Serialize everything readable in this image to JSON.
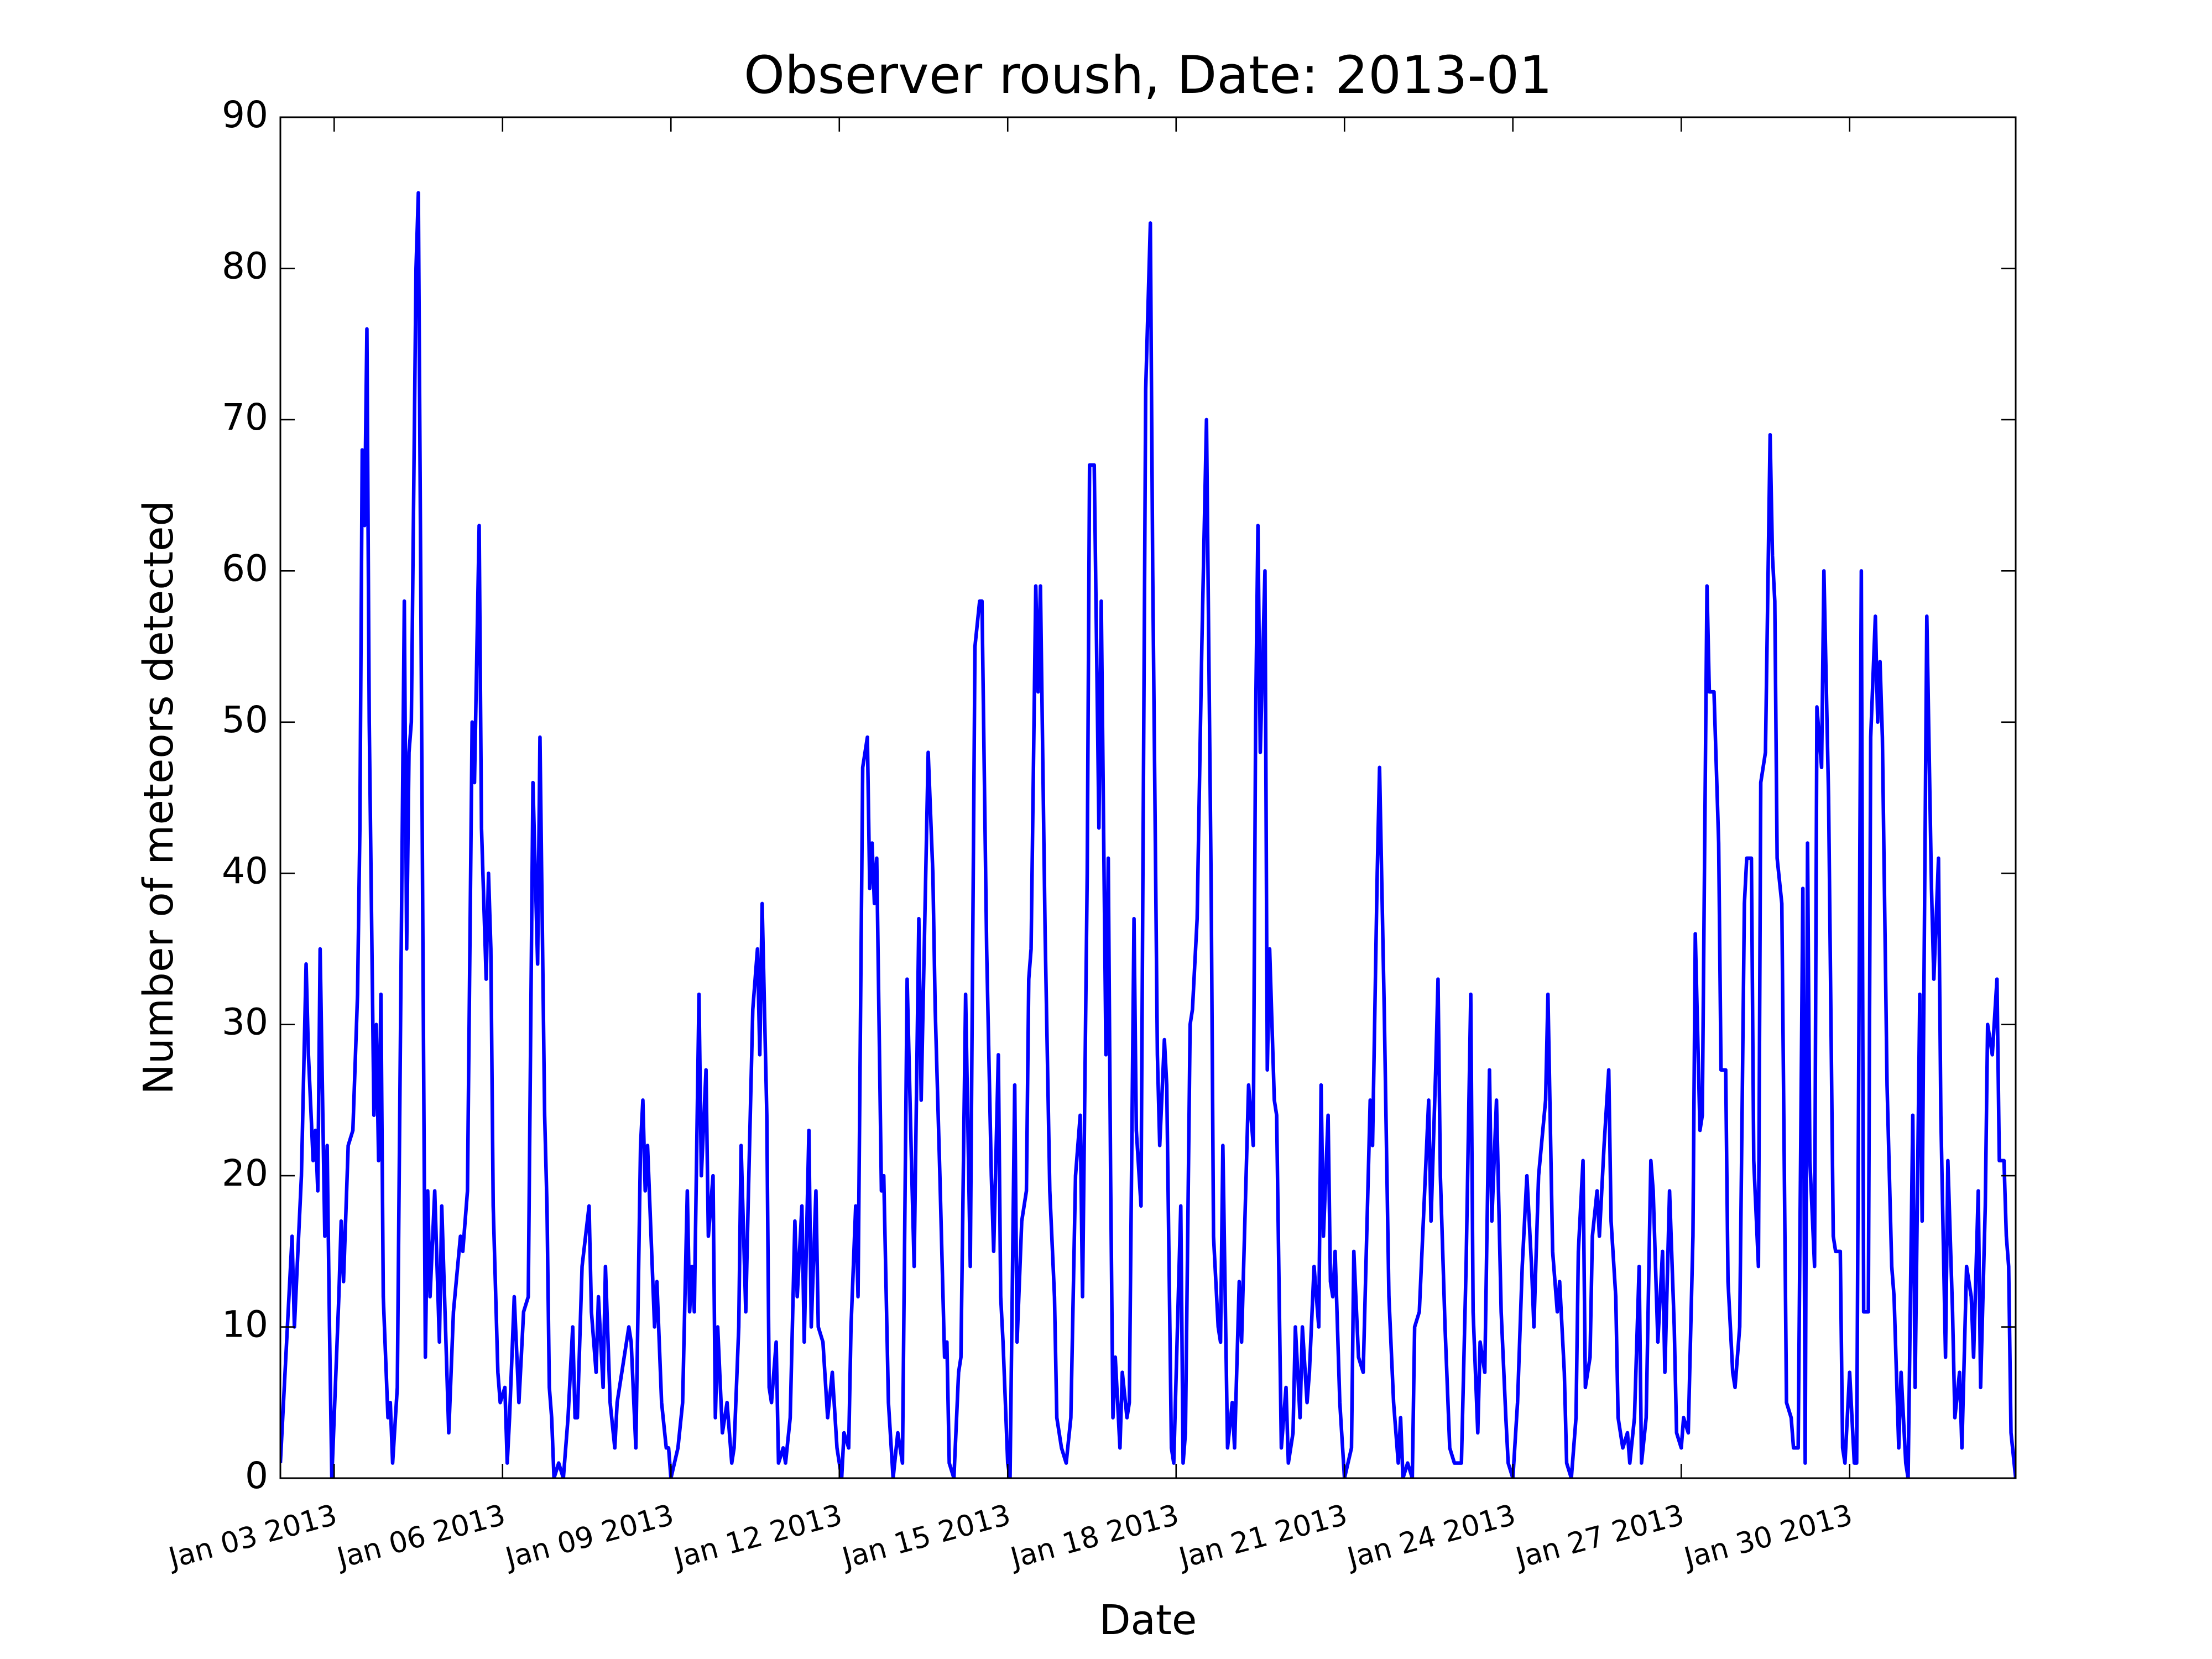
{
  "chart_data": {
    "type": "line",
    "title": "Observer roush, Date: 2013-01",
    "xlabel": "Date",
    "ylabel": "Number of meteors detected",
    "color": "#0000ff",
    "grid": false,
    "xlim": [
      "2013-01-02T01:00",
      "2013-02-01T23:00"
    ],
    "ylim": [
      0,
      90
    ],
    "yticks": [
      0,
      10,
      20,
      30,
      40,
      50,
      60,
      70,
      80,
      90
    ],
    "xticks": [
      {
        "value": "2013-01-03T00:00",
        "label": "Jan 03 2013"
      },
      {
        "value": "2013-01-06T00:00",
        "label": "Jan 06 2013"
      },
      {
        "value": "2013-01-09T00:00",
        "label": "Jan 09 2013"
      },
      {
        "value": "2013-01-12T00:00",
        "label": "Jan 12 2013"
      },
      {
        "value": "2013-01-15T00:00",
        "label": "Jan 15 2013"
      },
      {
        "value": "2013-01-18T00:00",
        "label": "Jan 18 2013"
      },
      {
        "value": "2013-01-21T00:00",
        "label": "Jan 21 2013"
      },
      {
        "value": "2013-01-24T00:00",
        "label": "Jan 24 2013"
      },
      {
        "value": "2013-01-27T00:00",
        "label": "Jan 27 2013"
      },
      {
        "value": "2013-01-30T00:00",
        "label": "Jan 30 2013"
      }
    ],
    "x": [
      "2013-01-02T01:00",
      "2013-01-02T04:00",
      "2013-01-02T06:00",
      "2013-01-02T07:00",
      "2013-01-02T10:00",
      "2013-01-02T12:00",
      "2013-01-02T13:00",
      "2013-01-02T15:00",
      "2013-01-02T16:00",
      "2013-01-02T17:00",
      "2013-01-02T18:00",
      "2013-01-02T20:00",
      "2013-01-02T21:00",
      "2013-01-02T22:00",
      "2013-01-02T23:00",
      "2013-01-03T02:00",
      "2013-01-03T03:00",
      "2013-01-03T04:00",
      "2013-01-03T06:00",
      "2013-01-03T08:00",
      "2013-01-03T10:00",
      "2013-01-03T11:00",
      "2013-01-03T12:00",
      "2013-01-03T13:00",
      "2013-01-03T14:00",
      "2013-01-03T15:00",
      "2013-01-03T17:00",
      "2013-01-03T18:00",
      "2013-01-03T19:00",
      "2013-01-03T20:00",
      "2013-01-03T21:00",
      "2013-01-03T23:00",
      "2013-01-04T00:00",
      "2013-01-04T01:00",
      "2013-01-04T03:00",
      "2013-01-04T06:00",
      "2013-01-04T07:00",
      "2013-01-04T08:00",
      "2013-01-04T09:00",
      "2013-01-04T11:00",
      "2013-01-04T12:00",
      "2013-01-04T13:00",
      "2013-01-04T15:00",
      "2013-01-04T16:00",
      "2013-01-04T17:00",
      "2013-01-04T19:00",
      "2013-01-04T21:00",
      "2013-01-04T22:00",
      "2013-01-05T01:00",
      "2013-01-05T03:00",
      "2013-01-05T06:00",
      "2013-01-05T07:00",
      "2013-01-05T09:00",
      "2013-01-05T11:00",
      "2013-01-05T12:00",
      "2013-01-05T14:00",
      "2013-01-05T15:00",
      "2013-01-05T17:00",
      "2013-01-05T18:00",
      "2013-01-05T19:00",
      "2013-01-05T20:00",
      "2013-01-05T22:00",
      "2013-01-05T23:00",
      "2013-01-06T01:00",
      "2013-01-06T02:00",
      "2013-01-06T03:00",
      "2013-01-06T05:00",
      "2013-01-06T07:00",
      "2013-01-06T09:00",
      "2013-01-06T11:00",
      "2013-01-06T13:00",
      "2013-01-06T15:00",
      "2013-01-06T16:00",
      "2013-01-06T18:00",
      "2013-01-06T19:00",
      "2013-01-06T20:00",
      "2013-01-06T21:00",
      "2013-01-06T22:00",
      "2013-01-07T00:00",
      "2013-01-07T02:00",
      "2013-01-07T04:00",
      "2013-01-07T06:00",
      "2013-01-07T07:00",
      "2013-01-07T08:00",
      "2013-01-07T10:00",
      "2013-01-07T13:00",
      "2013-01-07T14:00",
      "2013-01-07T16:00",
      "2013-01-07T17:00",
      "2013-01-07T19:00",
      "2013-01-07T20:00",
      "2013-01-07T22:00",
      "2013-01-08T00:00",
      "2013-01-08T01:00",
      "2013-01-08T04:00",
      "2013-01-08T06:00",
      "2013-01-08T07:00",
      "2013-01-08T09:00",
      "2013-01-08T11:00",
      "2013-01-08T12:00",
      "2013-01-08T13:00",
      "2013-01-08T14:00",
      "2013-01-08T15:00",
      "2013-01-08T17:00",
      "2013-01-08T18:00",
      "2013-01-08T20:00",
      "2013-01-08T22:00",
      "2013-01-08T23:00",
      "2013-01-09T00:00",
      "2013-01-09T03:00",
      "2013-01-09T05:00",
      "2013-01-09T07:00",
      "2013-01-09T08:00",
      "2013-01-09T09:00",
      "2013-01-09T10:00",
      "2013-01-09T12:00",
      "2013-01-09T13:00",
      "2013-01-09T15:00",
      "2013-01-09T16:00",
      "2013-01-09T18:00",
      "2013-01-09T19:00",
      "2013-01-09T20:00",
      "2013-01-09T22:00",
      "2013-01-10T00:00",
      "2013-01-10T02:00",
      "2013-01-10T03:00",
      "2013-01-10T05:00",
      "2013-01-10T06:00",
      "2013-01-10T08:00",
      "2013-01-10T09:00",
      "2013-01-10T11:00",
      "2013-01-10T13:00",
      "2013-01-10T14:00",
      "2013-01-10T15:00",
      "2013-01-10T17:00",
      "2013-01-10T18:00",
      "2013-01-10T19:00",
      "2013-01-10T21:00",
      "2013-01-10T22:00",
      "2013-01-11T00:00",
      "2013-01-11T01:00",
      "2013-01-11T03:00",
      "2013-01-11T05:00",
      "2013-01-11T06:00",
      "2013-01-11T08:00",
      "2013-01-11T09:00",
      "2013-01-11T11:00",
      "2013-01-11T12:00",
      "2013-01-11T14:00",
      "2013-01-11T15:00",
      "2013-01-11T17:00",
      "2013-01-11T19:00",
      "2013-01-11T21:00",
      "2013-01-11T23:00",
      "2013-01-12T01:00",
      "2013-01-12T02:00",
      "2013-01-12T04:00",
      "2013-01-12T05:00",
      "2013-01-12T07:00",
      "2013-01-12T08:00",
      "2013-01-12T10:00",
      "2013-01-12T12:00",
      "2013-01-12T13:00",
      "2013-01-12T14:00",
      "2013-01-12T15:00",
      "2013-01-12T16:00",
      "2013-01-12T18:00",
      "2013-01-12T19:00",
      "2013-01-12T21:00",
      "2013-01-12T23:00",
      "2013-01-13T01:00",
      "2013-01-13T03:00",
      "2013-01-13T05:00",
      "2013-01-13T07:00",
      "2013-01-13T08:00",
      "2013-01-13T10:00",
      "2013-01-13T11:00",
      "2013-01-13T14:00",
      "2013-01-13T16:00",
      "2013-01-13T17:00",
      "2013-01-13T19:00",
      "2013-01-13T21:00",
      "2013-01-13T22:00",
      "2013-01-13T23:00",
      "2013-01-14T01:00",
      "2013-01-14T03:00",
      "2013-01-14T04:00",
      "2013-01-14T06:00",
      "2013-01-14T08:00",
      "2013-01-14T10:00",
      "2013-01-14T12:00",
      "2013-01-14T13:00",
      "2013-01-14T15:00",
      "2013-01-14T17:00",
      "2013-01-14T18:00",
      "2013-01-14T20:00",
      "2013-01-14T21:00",
      "2013-01-14T22:00",
      "2013-01-15T00:00",
      "2013-01-15T01:00",
      "2013-01-15T03:00",
      "2013-01-15T04:00",
      "2013-01-15T06:00",
      "2013-01-15T08:00",
      "2013-01-15T09:00",
      "2013-01-15T10:00",
      "2013-01-15T12:00",
      "2013-01-15T13:00",
      "2013-01-15T14:00",
      "2013-01-15T16:00",
      "2013-01-15T18:00",
      "2013-01-15T20:00",
      "2013-01-15T21:00",
      "2013-01-15T23:00",
      "2013-01-16T01:00",
      "2013-01-16T03:00",
      "2013-01-16T05:00",
      "2013-01-16T07:00",
      "2013-01-16T08:00",
      "2013-01-16T10:00",
      "2013-01-16T11:00",
      "2013-01-16T13:00",
      "2013-01-16T14:00",
      "2013-01-16T15:00",
      "2013-01-16T16:00",
      "2013-01-16T18:00",
      "2013-01-16T19:00",
      "2013-01-16T20:00",
      "2013-01-16T21:00",
      "2013-01-16T22:00",
      "2013-01-17T00:00",
      "2013-01-17T01:00",
      "2013-01-17T03:00",
      "2013-01-17T04:00",
      "2013-01-17T06:00",
      "2013-01-17T07:00",
      "2013-01-17T09:00",
      "2013-01-17T11:00",
      "2013-01-17T13:00",
      "2013-01-17T14:00",
      "2013-01-17T16:00",
      "2013-01-17T17:00",
      "2013-01-17T19:00",
      "2013-01-17T20:00",
      "2013-01-17T22:00",
      "2013-01-17T23:00",
      "2013-01-18T02:00",
      "2013-01-18T03:00",
      "2013-01-18T04:00",
      "2013-01-18T06:00",
      "2013-01-18T07:00",
      "2013-01-18T09:00",
      "2013-01-18T11:00",
      "2013-01-18T13:00",
      "2013-01-18T15:00",
      "2013-01-18T16:00",
      "2013-01-18T18:00",
      "2013-01-18T19:00",
      "2013-01-18T20:00",
      "2013-01-18T22:00",
      "2013-01-19T00:00",
      "2013-01-19T01:00",
      "2013-01-19T03:00",
      "2013-01-19T04:00",
      "2013-01-19T07:00",
      "2013-01-19T09:00",
      "2013-01-19T10:00",
      "2013-01-19T11:00",
      "2013-01-19T12:00",
      "2013-01-19T14:00",
      "2013-01-19T15:00",
      "2013-01-19T16:00",
      "2013-01-19T18:00",
      "2013-01-19T19:00",
      "2013-01-19T21:00",
      "2013-01-19T23:00",
      "2013-01-20T00:00",
      "2013-01-20T02:00",
      "2013-01-20T03:00",
      "2013-01-20T05:00",
      "2013-01-20T06:00",
      "2013-01-20T08:00",
      "2013-01-20T09:00",
      "2013-01-20T11:00",
      "2013-01-20T13:00",
      "2013-01-20T14:00",
      "2013-01-20T15:00",
      "2013-01-20T17:00",
      "2013-01-20T18:00",
      "2013-01-20T19:00",
      "2013-01-20T20:00",
      "2013-01-20T22:00",
      "2013-01-21T00:00",
      "2013-01-21T03:00",
      "2013-01-21T04:00",
      "2013-01-21T06:00",
      "2013-01-21T08:00",
      "2013-01-21T10:00",
      "2013-01-21T11:00",
      "2013-01-21T12:00",
      "2013-01-21T14:00",
      "2013-01-21T15:00",
      "2013-01-21T17:00",
      "2013-01-21T19:00",
      "2013-01-21T21:00",
      "2013-01-21T23:00",
      "2013-01-22T00:00",
      "2013-01-22T01:00",
      "2013-01-22T03:00",
      "2013-01-22T05:00",
      "2013-01-22T06:00",
      "2013-01-22T08:00",
      "2013-01-22T10:00",
      "2013-01-22T12:00",
      "2013-01-22T13:00",
      "2013-01-22T15:00",
      "2013-01-22T16:00",
      "2013-01-22T17:00",
      "2013-01-22T19:00",
      "2013-01-22T21:00",
      "2013-01-22T23:00",
      "2013-01-23T02:00",
      "2013-01-23T04:00",
      "2013-01-23T06:00",
      "2013-01-23T07:00",
      "2013-01-23T09:00",
      "2013-01-23T10:00",
      "2013-01-23T12:00",
      "2013-01-23T14:00",
      "2013-01-23T15:00",
      "2013-01-23T17:00",
      "2013-01-23T19:00",
      "2013-01-23T21:00",
      "2013-01-23T22:00",
      "2013-01-24T00:00",
      "2013-01-24T02:00",
      "2013-01-24T04:00",
      "2013-01-24T06:00",
      "2013-01-24T08:00",
      "2013-01-24T09:00",
      "2013-01-24T11:00",
      "2013-01-24T14:00",
      "2013-01-24T15:00",
      "2013-01-24T17:00",
      "2013-01-24T19:00",
      "2013-01-24T20:00",
      "2013-01-24T22:00",
      "2013-01-24T23:00",
      "2013-01-25T01:00",
      "2013-01-25T03:00",
      "2013-01-25T04:00",
      "2013-01-25T06:00",
      "2013-01-25T07:00",
      "2013-01-25T09:00",
      "2013-01-25T10:00",
      "2013-01-25T12:00",
      "2013-01-25T13:00",
      "2013-01-25T15:00",
      "2013-01-25T17:00",
      "2013-01-25T18:00",
      "2013-01-25T20:00",
      "2013-01-25T21:00",
      "2013-01-25T23:00",
      "2013-01-26T01:00",
      "2013-01-26T02:00",
      "2013-01-26T04:00",
      "2013-01-26T06:00",
      "2013-01-26T07:00",
      "2013-01-26T09:00",
      "2013-01-26T11:00",
      "2013-01-26T12:00",
      "2013-01-26T14:00",
      "2013-01-26T16:00",
      "2013-01-26T17:00",
      "2013-01-26T19:00",
      "2013-01-26T21:00",
      "2013-01-26T22:00",
      "2013-01-27T00:00",
      "2013-01-27T01:00",
      "2013-01-27T03:00",
      "2013-01-27T05:00",
      "2013-01-27T06:00",
      "2013-01-27T08:00",
      "2013-01-27T09:00",
      "2013-01-27T11:00",
      "2013-01-27T12:00",
      "2013-01-27T14:00",
      "2013-01-27T16:00",
      "2013-01-27T17:00",
      "2013-01-27T19:00",
      "2013-01-27T20:00",
      "2013-01-27T22:00",
      "2013-01-27T23:00",
      "2013-01-28T01:00",
      "2013-01-28T03:00",
      "2013-01-28T04:00",
      "2013-01-28T06:00",
      "2013-01-28T07:00",
      "2013-01-28T09:00",
      "2013-01-28T10:00",
      "2013-01-28T12:00",
      "2013-01-28T14:00",
      "2013-01-28T15:00",
      "2013-01-28T16:00",
      "2013-01-28T17:00",
      "2013-01-28T19:00",
      "2013-01-28T21:00",
      "2013-01-28T23:00",
      "2013-01-29T00:00",
      "2013-01-29T02:00",
      "2013-01-29T04:00",
      "2013-01-29T05:00",
      "2013-01-29T06:00",
      "2013-01-29T07:00",
      "2013-01-29T09:00",
      "2013-01-29T10:00",
      "2013-01-29T12:00",
      "2013-01-29T13:00",
      "2013-01-29T15:00",
      "2013-01-29T17:00",
      "2013-01-29T18:00",
      "2013-01-29T20:00",
      "2013-01-29T21:00",
      "2013-01-29T22:00",
      "2013-01-30T00:00",
      "2013-01-30T02:00",
      "2013-01-30T03:00",
      "2013-01-30T05:00",
      "2013-01-30T06:00",
      "2013-01-30T08:00",
      "2013-01-30T09:00",
      "2013-01-30T11:00",
      "2013-01-30T12:00",
      "2013-01-30T13:00",
      "2013-01-30T14:00",
      "2013-01-30T16:00",
      "2013-01-30T18:00",
      "2013-01-30T19:00",
      "2013-01-30T21:00",
      "2013-01-30T22:00",
      "2013-01-31T00:00",
      "2013-01-31T01:00",
      "2013-01-31T03:00",
      "2013-01-31T04:00",
      "2013-01-31T06:00",
      "2013-01-31T07:00",
      "2013-01-31T09:00",
      "2013-01-31T11:00",
      "2013-01-31T12:00",
      "2013-01-31T14:00",
      "2013-01-31T15:00",
      "2013-01-31T17:00",
      "2013-01-31T18:00",
      "2013-01-31T20:00",
      "2013-01-31T21:00",
      "2013-01-31T23:00",
      "2013-02-01T00:00",
      "2013-02-01T02:00",
      "2013-02-01T04:00",
      "2013-02-01T05:00",
      "2013-02-01T07:00",
      "2013-02-01T08:00",
      "2013-02-01T10:00",
      "2013-02-01T11:00",
      "2013-02-01T13:00",
      "2013-02-01T15:00",
      "2013-02-01T16:00",
      "2013-02-01T18:00",
      "2013-02-01T19:00",
      "2013-02-01T20:00",
      "2013-02-01T21:00",
      "2013-02-01T23:00"
    ],
    "values": [
      1,
      10,
      16,
      10,
      20,
      34,
      28,
      21,
      23,
      19,
      35,
      16,
      22,
      10,
      0,
      12,
      17,
      13,
      22,
      23,
      32,
      43,
      68,
      63,
      76,
      50,
      24,
      30,
      21,
      32,
      12,
      4,
      5,
      1,
      6,
      58,
      35,
      48,
      50,
      80,
      85,
      60,
      8,
      19,
      12,
      19,
      9,
      18,
      3,
      11,
      16,
      15,
      19,
      50,
      46,
      63,
      43,
      33,
      40,
      35,
      18,
      7,
      5,
      6,
      1,
      4,
      12,
      5,
      11,
      12,
      46,
      34,
      49,
      24,
      18,
      6,
      4,
      0,
      1,
      0,
      4,
      10,
      4,
      4,
      14,
      18,
      11,
      7,
      12,
      6,
      14,
      5,
      2,
      5,
      8,
      10,
      9,
      2,
      22,
      25,
      19,
      22,
      18,
      10,
      13,
      5,
      2,
      2,
      0,
      2,
      5,
      19,
      11,
      14,
      11,
      32,
      20,
      27,
      16,
      20,
      4,
      10,
      3,
      5,
      1,
      2,
      10,
      22,
      11,
      18,
      31,
      35,
      28,
      38,
      24,
      6,
      5,
      9,
      1,
      2,
      1,
      4,
      17,
      12,
      18,
      9,
      23,
      10,
      19,
      10,
      9,
      4,
      7,
      2,
      0,
      3,
      2,
      10,
      18,
      12,
      47,
      49,
      39,
      42,
      38,
      41,
      19,
      20,
      5,
      0,
      3,
      1,
      33,
      20,
      14,
      37,
      25,
      48,
      40,
      31,
      20,
      8,
      9,
      1,
      0,
      7,
      8,
      32,
      14,
      55,
      58,
      58,
      35,
      20,
      15,
      28,
      12,
      9,
      1,
      0,
      26,
      9,
      17,
      19,
      33,
      35,
      59,
      52,
      59,
      36,
      19,
      12,
      4,
      2,
      1,
      4,
      20,
      24,
      12,
      40,
      67,
      67,
      55,
      43,
      58,
      28,
      41,
      20,
      4,
      8,
      2,
      7,
      4,
      5,
      37,
      23,
      18,
      72,
      83,
      60,
      28,
      22,
      29,
      26,
      2,
      1,
      18,
      1,
      3,
      30,
      31,
      37,
      55,
      70,
      39,
      16,
      10,
      9,
      22,
      2,
      5,
      2,
      13,
      9,
      26,
      22,
      50,
      63,
      48,
      60,
      27,
      35,
      25,
      24,
      2,
      6,
      1,
      3,
      10,
      4,
      10,
      5,
      7,
      14,
      10,
      26,
      16,
      24,
      13,
      12,
      15,
      5,
      0,
      2,
      15,
      8,
      7,
      19,
      25,
      22,
      40,
      47,
      31,
      12,
      5,
      1,
      4,
      0,
      1,
      0,
      10,
      11,
      18,
      25,
      17,
      27,
      33,
      20,
      10,
      2,
      1,
      1,
      14,
      32,
      11,
      3,
      9,
      7,
      27,
      17,
      25,
      11,
      4,
      1,
      0,
      5,
      14,
      20,
      14,
      10,
      20,
      25,
      32,
      15,
      11,
      13,
      7,
      1,
      0,
      4,
      15,
      21,
      6,
      8,
      16,
      19,
      16,
      22,
      27,
      17,
      12,
      4,
      2,
      3,
      1,
      4,
      14,
      1,
      4,
      21,
      19,
      9,
      15,
      7,
      19,
      10,
      3,
      2,
      4,
      3,
      16,
      36,
      23,
      24,
      59,
      52,
      52,
      42,
      27,
      27,
      13,
      7,
      6,
      10,
      38,
      41,
      41,
      21,
      14,
      46,
      48,
      69,
      61,
      58,
      41,
      38,
      5,
      4,
      2,
      2,
      39,
      1,
      42,
      21,
      14,
      51,
      47,
      60,
      45,
      16,
      15,
      15,
      2,
      1,
      7,
      1,
      1,
      60,
      11,
      11,
      49,
      57,
      50,
      54,
      49,
      26,
      14,
      12,
      2,
      7,
      1,
      0,
      24,
      6,
      32,
      17,
      57,
      39,
      33,
      41,
      24,
      8,
      21,
      11,
      4,
      7,
      2,
      14,
      12,
      8,
      19,
      6,
      18,
      30,
      28,
      33,
      21,
      21,
      16,
      14,
      3,
      0
    ]
  }
}
